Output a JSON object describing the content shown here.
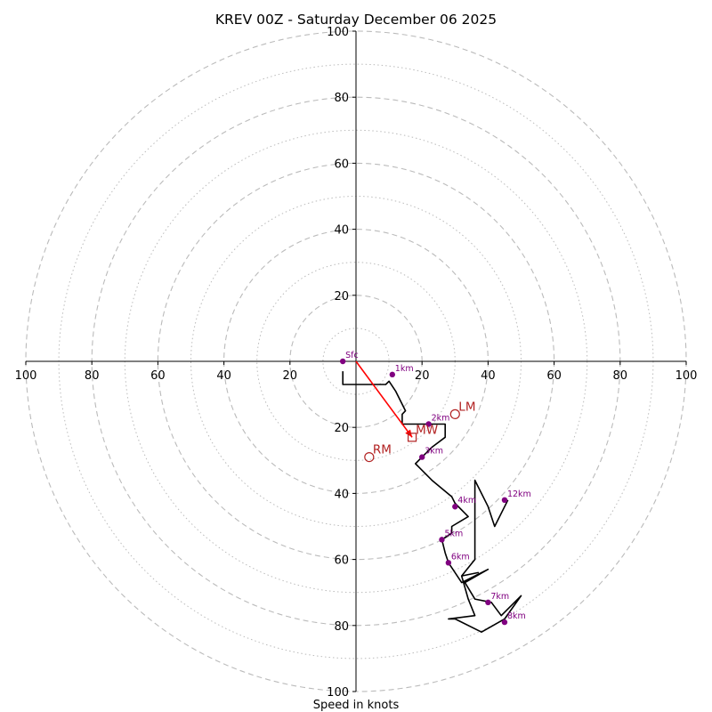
{
  "chart_data": {
    "type": "hodograph",
    "title": "KREV 00Z - Saturday December 06 2025",
    "xlabel": "Speed in knots",
    "units": "knots",
    "range": [
      -100,
      100
    ],
    "ring_major": [
      20,
      40,
      60,
      80,
      100
    ],
    "ring_minor": [
      10,
      30,
      50,
      70,
      90
    ],
    "tick_labels": {
      "top": [
        "20",
        "40",
        "60",
        "80",
        "100"
      ],
      "bottom": [
        "20",
        "40",
        "60",
        "80",
        "100"
      ],
      "left": [
        "20",
        "40",
        "60",
        "80",
        "100"
      ],
      "right": [
        "20",
        "40",
        "60",
        "80",
        "100"
      ]
    },
    "trace": [
      [
        -4,
        -3
      ],
      [
        -4,
        -7
      ],
      [
        9,
        -7
      ],
      [
        10,
        -6
      ],
      [
        12,
        -9
      ],
      [
        15,
        -15
      ],
      [
        14,
        -16
      ],
      [
        14,
        -19
      ],
      [
        27,
        -19
      ],
      [
        27,
        -23
      ],
      [
        23,
        -26
      ],
      [
        20,
        -29
      ],
      [
        18,
        -31
      ],
      [
        19,
        -32
      ],
      [
        23,
        -36
      ],
      [
        29,
        -41
      ],
      [
        30,
        -43
      ],
      [
        34,
        -47
      ],
      [
        29,
        -50
      ],
      [
        29,
        -52
      ],
      [
        26,
        -54
      ],
      [
        27,
        -58
      ],
      [
        28,
        -61
      ],
      [
        32,
        -67
      ],
      [
        40,
        -63
      ],
      [
        33,
        -67
      ],
      [
        36,
        -72
      ],
      [
        41,
        -73
      ],
      [
        44,
        -77
      ],
      [
        50,
        -71
      ],
      [
        45,
        -78
      ],
      [
        38,
        -82
      ],
      [
        30,
        -78
      ],
      [
        28,
        -78
      ],
      [
        36,
        -77
      ],
      [
        34,
        -72
      ],
      [
        32,
        -65
      ],
      [
        37,
        -64
      ],
      [
        32,
        -65
      ],
      [
        36,
        -60
      ],
      [
        36,
        -36
      ],
      [
        40,
        -44
      ],
      [
        42,
        -50
      ],
      [
        46,
        -42
      ]
    ],
    "height_markers": [
      {
        "label": "Sfc",
        "u": -4,
        "v": 0
      },
      {
        "label": "1km",
        "u": 11,
        "v": -4
      },
      {
        "label": "2km",
        "u": 22,
        "v": -19
      },
      {
        "label": "3km",
        "u": 20,
        "v": -29
      },
      {
        "label": "4km",
        "u": 30,
        "v": -44
      },
      {
        "label": "5km",
        "u": 26,
        "v": -54
      },
      {
        "label": "6km",
        "u": 28,
        "v": -61
      },
      {
        "label": "7km",
        "u": 40,
        "v": -73
      },
      {
        "label": "8km",
        "u": 45,
        "v": -79
      },
      {
        "label": "12km",
        "u": 45,
        "v": -42
      }
    ],
    "motions": [
      {
        "label": "LM",
        "u": 30,
        "v": -16,
        "symbol": "circle"
      },
      {
        "label": "MW",
        "u": 17,
        "v": -23,
        "symbol": "square"
      },
      {
        "label": "RM",
        "u": 4,
        "v": -29,
        "symbol": "circle"
      }
    ],
    "shear_vector": {
      "from": [
        0,
        0
      ],
      "to": [
        17,
        -23
      ]
    },
    "colors": {
      "trace": "#000000",
      "marker": "#800080",
      "motion": "#b22222",
      "shear": "#ff0000",
      "grid": "#bbbbbb",
      "axis": "#000000"
    }
  }
}
